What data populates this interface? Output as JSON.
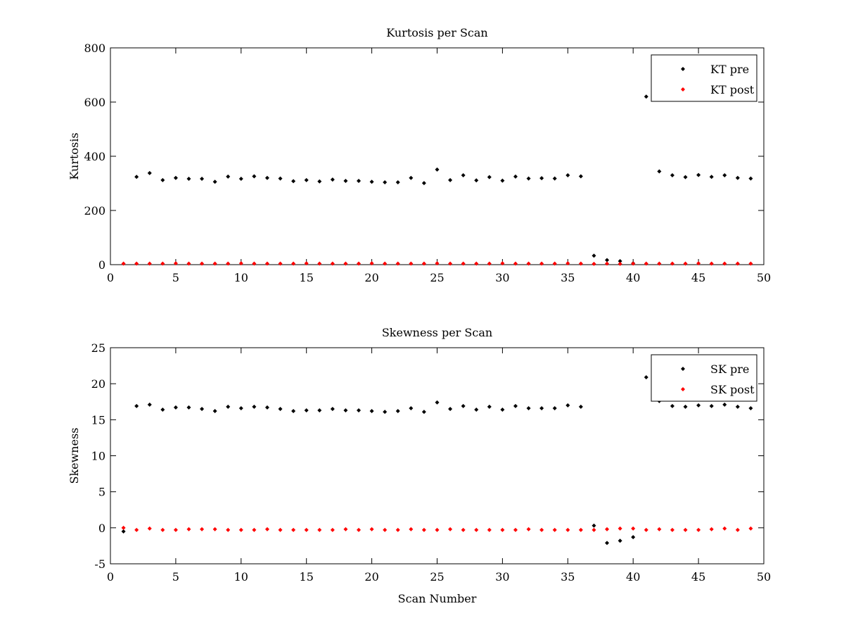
{
  "chart_data": [
    {
      "type": "scatter",
      "title": "Kurtosis per Scan",
      "xlabel": "",
      "ylabel": "Kurtosis",
      "xlim": [
        0,
        50
      ],
      "ylim": [
        0,
        800
      ],
      "xticks": [
        0,
        5,
        10,
        15,
        20,
        25,
        30,
        35,
        40,
        45,
        50
      ],
      "yticks": [
        0,
        200,
        400,
        600,
        800
      ],
      "legend_position": "top-right",
      "series": [
        {
          "name": "KT pre",
          "color": "#000000",
          "x": [
            2,
            3,
            4,
            5,
            6,
            7,
            8,
            9,
            10,
            11,
            12,
            13,
            14,
            15,
            16,
            17,
            18,
            19,
            20,
            21,
            22,
            23,
            24,
            25,
            26,
            27,
            28,
            29,
            30,
            31,
            32,
            33,
            34,
            35,
            36,
            37,
            38,
            39,
            40,
            41,
            42,
            43,
            44,
            45,
            46,
            47,
            48,
            49
          ],
          "y": [
            324,
            338,
            312,
            320,
            317,
            317,
            306,
            325,
            317,
            326,
            320,
            318,
            308,
            312,
            307,
            314,
            309,
            309,
            306,
            304,
            304,
            320,
            301,
            351,
            312,
            330,
            311,
            323,
            310,
            325,
            318,
            319,
            318,
            330,
            326,
            33,
            17,
            13,
            5,
            620,
            344,
            330,
            323,
            331,
            324,
            330,
            320,
            318
          ]
        },
        {
          "name": "KT post",
          "color": "#ff0000",
          "x": [
            1,
            2,
            3,
            4,
            5,
            6,
            7,
            8,
            9,
            10,
            11,
            12,
            13,
            14,
            15,
            16,
            17,
            18,
            19,
            20,
            21,
            22,
            23,
            24,
            25,
            26,
            27,
            28,
            29,
            30,
            31,
            32,
            33,
            34,
            35,
            36,
            37,
            38,
            39,
            40,
            41,
            42,
            43,
            44,
            45,
            46,
            47,
            48,
            49
          ],
          "y": [
            4,
            4,
            4,
            4,
            5,
            4,
            4,
            4,
            4,
            5,
            4,
            4,
            4,
            4,
            5,
            4,
            4,
            4,
            4,
            5,
            4,
            4,
            4,
            4,
            5,
            4,
            4,
            4,
            4,
            5,
            4,
            4,
            4,
            4,
            5,
            4,
            3,
            4,
            3,
            4,
            4,
            4,
            4,
            4,
            5,
            4,
            4,
            4,
            4
          ]
        }
      ]
    },
    {
      "type": "scatter",
      "title": "Skewness per Scan",
      "xlabel": "Scan Number",
      "ylabel": "Skewness",
      "xlim": [
        0,
        50
      ],
      "ylim": [
        -5,
        25
      ],
      "xticks": [
        0,
        5,
        10,
        15,
        20,
        25,
        30,
        35,
        40,
        45,
        50
      ],
      "yticks": [
        -5,
        0,
        5,
        10,
        15,
        20,
        25
      ],
      "legend_position": "top-right",
      "series": [
        {
          "name": "SK pre",
          "color": "#000000",
          "x": [
            1,
            2,
            3,
            4,
            5,
            6,
            7,
            8,
            9,
            10,
            11,
            12,
            13,
            14,
            15,
            16,
            17,
            18,
            19,
            20,
            21,
            22,
            23,
            24,
            25,
            26,
            27,
            28,
            29,
            30,
            31,
            32,
            33,
            34,
            35,
            36,
            37,
            38,
            39,
            40,
            41,
            42,
            43,
            44,
            45,
            46,
            47,
            48,
            49
          ],
          "y": [
            -0.5,
            16.9,
            17.1,
            16.4,
            16.7,
            16.7,
            16.5,
            16.2,
            16.8,
            16.6,
            16.8,
            16.7,
            16.5,
            16.2,
            16.3,
            16.3,
            16.5,
            16.3,
            16.3,
            16.2,
            16.1,
            16.2,
            16.6,
            16.1,
            17.4,
            16.5,
            16.9,
            16.4,
            16.8,
            16.4,
            16.9,
            16.6,
            16.6,
            16.6,
            17.0,
            16.8,
            0.3,
            -2.1,
            -1.8,
            -1.3,
            20.9,
            17.6,
            16.9,
            16.8,
            17.0,
            16.9,
            17.1,
            16.8,
            16.6
          ]
        },
        {
          "name": "SK post",
          "color": "#ff0000",
          "x": [
            1,
            2,
            3,
            4,
            5,
            6,
            7,
            8,
            9,
            10,
            11,
            12,
            13,
            14,
            15,
            16,
            17,
            18,
            19,
            20,
            21,
            22,
            23,
            24,
            25,
            26,
            27,
            28,
            29,
            30,
            31,
            32,
            33,
            34,
            35,
            36,
            37,
            38,
            39,
            40,
            41,
            42,
            43,
            44,
            45,
            46,
            47,
            48,
            49
          ],
          "y": [
            0.0,
            -0.3,
            -0.1,
            -0.3,
            -0.3,
            -0.2,
            -0.2,
            -0.2,
            -0.3,
            -0.3,
            -0.3,
            -0.2,
            -0.3,
            -0.3,
            -0.3,
            -0.3,
            -0.3,
            -0.2,
            -0.3,
            -0.2,
            -0.3,
            -0.3,
            -0.2,
            -0.3,
            -0.3,
            -0.2,
            -0.3,
            -0.3,
            -0.3,
            -0.3,
            -0.3,
            -0.2,
            -0.3,
            -0.3,
            -0.3,
            -0.3,
            -0.3,
            -0.2,
            -0.1,
            -0.1,
            -0.3,
            -0.2,
            -0.3,
            -0.3,
            -0.3,
            -0.2,
            -0.1,
            -0.3,
            -0.1
          ]
        }
      ]
    }
  ]
}
